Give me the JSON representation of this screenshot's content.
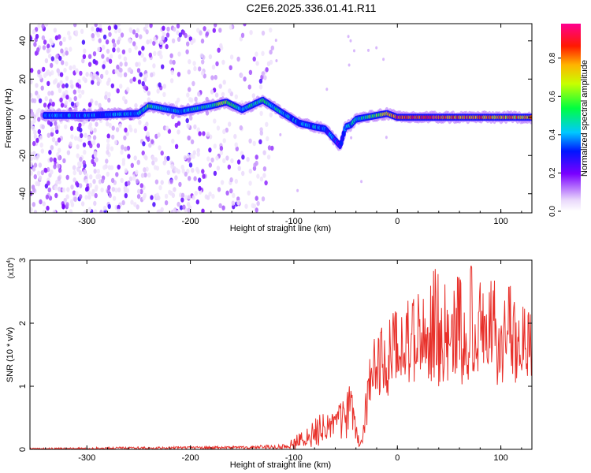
{
  "figure_title": "C2E6.2025.336.01.41.R11",
  "chart_data": [
    {
      "type": "heatmap",
      "title": "C2E6.2025.336.01.41.R11",
      "xlabel": "Height of straight line (km)",
      "ylabel": "Frequency (Hz)",
      "xlim": [
        -355,
        130
      ],
      "ylim": [
        -50,
        49
      ],
      "x_ticks": [
        -300,
        -200,
        -100,
        0,
        100
      ],
      "x_tick_labels": [
        "-300",
        "-200",
        "-100",
        "0",
        "100"
      ],
      "y_ticks": [
        -40,
        -20,
        0,
        20,
        40
      ],
      "y_tick_labels": [
        "-40",
        "-20",
        "0",
        "20",
        "40"
      ],
      "colorbar": {
        "label": "Normalized spectral amplitude",
        "range": [
          0.0,
          0.98
        ],
        "ticks": [
          0.0,
          0.2,
          0.4,
          0.6,
          0.8
        ],
        "tick_labels": [
          "0.0",
          "0.2",
          "0.4",
          "0.6",
          "0.8"
        ],
        "colormap": "rainbow (white-purple-blue-cyan-green-yellow-red-magenta)"
      },
      "ridge": {
        "description": "main spectral line frequency vs height",
        "x": [
          -340,
          -300,
          -250,
          -240,
          -210,
          -180,
          -165,
          -150,
          -130,
          -110,
          -95,
          -80,
          -70,
          -60,
          -55,
          -50,
          -45,
          -40,
          -30,
          -20,
          -10,
          0,
          50,
          100,
          130
        ],
        "y": [
          1,
          1,
          2,
          6,
          3,
          6,
          8,
          4,
          9,
          2,
          -3,
          -5,
          -6,
          -12,
          -15,
          -5,
          -4,
          -1,
          0,
          1,
          2,
          0,
          0,
          0,
          0
        ],
        "amplitude": [
          0.35,
          0.35,
          0.4,
          0.55,
          0.4,
          0.5,
          0.65,
          0.45,
          0.5,
          0.45,
          0.35,
          0.4,
          0.35,
          0.3,
          0.3,
          0.35,
          0.4,
          0.45,
          0.5,
          0.6,
          0.7,
          0.9,
          0.85,
          0.8,
          0.75
        ]
      },
      "noise_region_x": [
        -355,
        -120
      ]
    },
    {
      "type": "line",
      "xlabel": "Height of straight line (km)",
      "ylabel": "SNR (10 * v/v)",
      "ylabel_multiplier": "(x10",
      "ylabel_multiplier_exp": "4",
      "ylabel_multiplier_close": ")",
      "xlim": [
        -355,
        130
      ],
      "ylim": [
        0,
        3
      ],
      "x_ticks": [
        -300,
        -200,
        -100,
        0,
        100
      ],
      "x_tick_labels": [
        "-300",
        "-200",
        "-100",
        "0",
        "100"
      ],
      "y_ticks": [
        0,
        1,
        2,
        3
      ],
      "y_tick_labels": [
        "0",
        "1",
        "2",
        "3"
      ],
      "series": [
        {
          "name": "SNR",
          "color": "#e8302a",
          "x": [
            -355,
            -250,
            -150,
            -110,
            -100,
            -90,
            -80,
            -70,
            -60,
            -50,
            -45,
            -40,
            -35,
            -30,
            -25,
            -20,
            -10,
            0,
            10,
            20,
            30,
            40,
            50,
            60,
            70,
            80,
            90,
            100,
            110,
            120,
            130
          ],
          "y": [
            0.01,
            0.02,
            0.03,
            0.04,
            0.08,
            0.15,
            0.25,
            0.35,
            0.45,
            0.6,
            0.7,
            0.3,
            0.1,
            0.5,
            1.0,
            1.2,
            1.3,
            1.5,
            1.6,
            1.7,
            1.75,
            1.8,
            1.8,
            1.85,
            1.8,
            1.8,
            1.75,
            1.7,
            1.7,
            1.7,
            1.7
          ],
          "envelope_max": [
            0.02,
            0.04,
            0.05,
            0.08,
            0.2,
            0.3,
            0.5,
            0.6,
            0.55,
            1.0,
            1.1,
            0.4,
            0.2,
            1.0,
            1.8,
            1.8,
            2.1,
            2.3,
            2.4,
            2.5,
            2.8,
            2.9,
            2.95,
            2.9,
            2.95,
            2.7,
            2.8,
            2.7,
            2.6,
            2.5,
            2.3
          ],
          "envelope_min": [
            0.0,
            0.0,
            0.0,
            0.0,
            0.0,
            0.02,
            0.05,
            0.05,
            0.1,
            0.05,
            0.1,
            0.05,
            0.0,
            0.3,
            0.6,
            0.8,
            0.8,
            1.0,
            1.0,
            1.1,
            1.1,
            1.0,
            1.0,
            1.0,
            1.0,
            1.0,
            1.05,
            1.0,
            1.0,
            1.0,
            1.1
          ]
        }
      ]
    }
  ]
}
